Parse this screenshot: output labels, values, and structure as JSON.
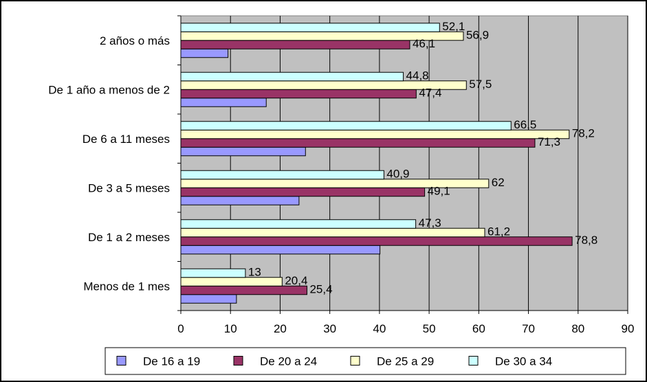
{
  "chart_data": {
    "type": "bar",
    "orientation": "horizontal",
    "categories": [
      "Menos de 1 mes",
      "De 1 a 2 meses",
      "De 3 a 5 meses",
      "De 6 a 11 meses",
      "De 1 año a menos de 2",
      "2 años o más"
    ],
    "series": [
      {
        "name": "De 16 a 19",
        "color": "#9999ff",
        "values": [
          11.2,
          40.1,
          23.8,
          25.1,
          17.2,
          9.5
        ],
        "labels": [
          "",
          "",
          "",
          "",
          "",
          ""
        ]
      },
      {
        "name": "De 20 a 24",
        "color": "#993366",
        "values": [
          25.4,
          78.8,
          49.1,
          71.3,
          47.4,
          46.1
        ],
        "labels": [
          "25,4",
          "78,8",
          "49,1",
          "71,3",
          "47,4",
          "46,1"
        ]
      },
      {
        "name": "De 25 a 29",
        "color": "#ffffcc",
        "values": [
          20.4,
          61.2,
          62,
          78.2,
          57.5,
          56.9
        ],
        "labels": [
          "20,4",
          "61,2",
          "62",
          "78,2",
          "57,5",
          "56,9"
        ]
      },
      {
        "name": "De 30 a 34",
        "color": "#ccffff",
        "values": [
          13,
          47.3,
          40.9,
          66.5,
          44.8,
          52.1
        ],
        "labels": [
          "13",
          "47,3",
          "40,9",
          "66,5",
          "44,8",
          "52,1"
        ]
      }
    ],
    "xlim": [
      0,
      90
    ],
    "xticks": [
      "0",
      "10",
      "20",
      "30",
      "40",
      "50",
      "60",
      "70",
      "80",
      "90"
    ],
    "grid": "vertical",
    "plot_background": "#c0c0c0",
    "legend": "bottom"
  }
}
